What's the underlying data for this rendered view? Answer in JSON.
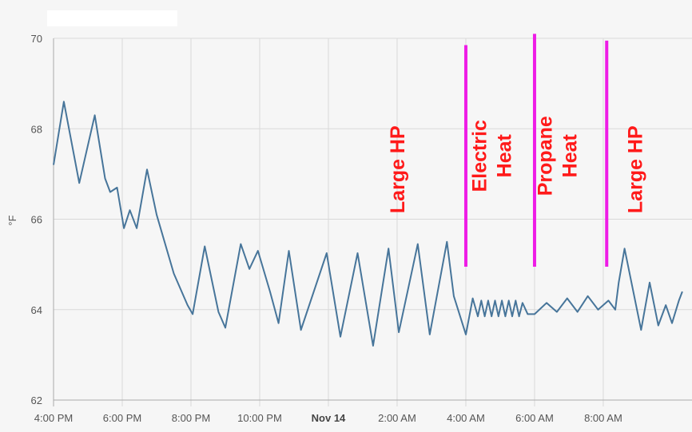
{
  "chart_data": {
    "type": "line",
    "title": "",
    "xlabel": "",
    "ylabel": "°F",
    "ylim": [
      62,
      70
    ],
    "y_ticks": [
      62,
      64,
      66,
      68,
      70
    ],
    "x_domain_hours": [
      16,
      34.35
    ],
    "x_ticks": [
      {
        "hour": 16,
        "label": "4:00 PM",
        "bold": false
      },
      {
        "hour": 18,
        "label": "6:00 PM",
        "bold": false
      },
      {
        "hour": 20,
        "label": "8:00 PM",
        "bold": false
      },
      {
        "hour": 22,
        "label": "10:00 PM",
        "bold": false
      },
      {
        "hour": 24,
        "label": "Nov 14",
        "bold": true
      },
      {
        "hour": 26,
        "label": "2:00 AM",
        "bold": false
      },
      {
        "hour": 28,
        "label": "4:00 AM",
        "bold": false
      },
      {
        "hour": 30,
        "label": "6:00 AM",
        "bold": false
      },
      {
        "hour": 32,
        "label": "8:00 AM",
        "bold": false
      }
    ],
    "grid": true,
    "line_color": "#47759a",
    "series": [
      {
        "name": "",
        "points": [
          [
            16.0,
            67.2
          ],
          [
            16.3,
            68.6
          ],
          [
            16.75,
            66.8
          ],
          [
            17.2,
            68.3
          ],
          [
            17.5,
            66.9
          ],
          [
            17.65,
            66.6
          ],
          [
            17.85,
            66.7
          ],
          [
            18.05,
            65.8
          ],
          [
            18.22,
            66.2
          ],
          [
            18.42,
            65.8
          ],
          [
            18.72,
            67.1
          ],
          [
            19.0,
            66.1
          ],
          [
            19.5,
            64.8
          ],
          [
            19.9,
            64.1
          ],
          [
            20.05,
            63.9
          ],
          [
            20.4,
            65.4
          ],
          [
            20.8,
            63.95
          ],
          [
            21.0,
            63.6
          ],
          [
            21.45,
            65.45
          ],
          [
            21.7,
            64.9
          ],
          [
            21.95,
            65.3
          ],
          [
            22.3,
            64.4
          ],
          [
            22.55,
            63.7
          ],
          [
            22.85,
            65.3
          ],
          [
            23.2,
            63.55
          ],
          [
            23.95,
            65.25
          ],
          [
            24.35,
            63.4
          ],
          [
            24.85,
            65.25
          ],
          [
            25.3,
            63.2
          ],
          [
            25.75,
            65.35
          ],
          [
            26.05,
            63.5
          ],
          [
            26.6,
            65.45
          ],
          [
            26.95,
            63.45
          ],
          [
            27.45,
            65.5
          ],
          [
            27.65,
            64.3
          ],
          [
            28.0,
            63.45
          ],
          [
            28.2,
            64.25
          ],
          [
            28.35,
            63.85
          ],
          [
            28.45,
            64.2
          ],
          [
            28.55,
            63.85
          ],
          [
            28.65,
            64.2
          ],
          [
            28.75,
            63.85
          ],
          [
            28.85,
            64.2
          ],
          [
            28.95,
            63.85
          ],
          [
            29.05,
            64.2
          ],
          [
            29.15,
            63.85
          ],
          [
            29.25,
            64.2
          ],
          [
            29.35,
            63.85
          ],
          [
            29.45,
            64.2
          ],
          [
            29.55,
            63.85
          ],
          [
            29.65,
            64.15
          ],
          [
            29.8,
            63.9
          ],
          [
            30.0,
            63.9
          ],
          [
            30.35,
            64.15
          ],
          [
            30.65,
            63.95
          ],
          [
            30.95,
            64.25
          ],
          [
            31.25,
            63.95
          ],
          [
            31.55,
            64.3
          ],
          [
            31.85,
            64.0
          ],
          [
            32.15,
            64.2
          ],
          [
            32.35,
            64.0
          ],
          [
            32.45,
            64.6
          ],
          [
            32.62,
            65.35
          ],
          [
            32.9,
            64.3
          ],
          [
            33.1,
            63.55
          ],
          [
            33.35,
            64.6
          ],
          [
            33.6,
            63.65
          ],
          [
            33.82,
            64.1
          ],
          [
            34.0,
            63.7
          ],
          [
            34.2,
            64.2
          ],
          [
            34.3,
            64.4
          ]
        ]
      }
    ],
    "annotations": [
      {
        "text": "Large HP",
        "lines": [
          "Large HP"
        ],
        "hour": 26.0,
        "y": 67.1
      },
      {
        "text": "Electric Heat",
        "lines": [
          "Electric",
          "Heat"
        ],
        "hour": 28.75,
        "y": 67.4
      },
      {
        "text": "Propane Heat",
        "lines": [
          "Propane",
          "Heat"
        ],
        "hour": 30.65,
        "y": 67.4
      },
      {
        "text": "Large HP",
        "lines": [
          "Large HP"
        ],
        "hour": 32.92,
        "y": 67.1
      }
    ],
    "markers": [
      {
        "hour": 28.0,
        "y_from": 64.95,
        "y_to": 69.85
      },
      {
        "hour": 30.0,
        "y_from": 64.95,
        "y_to": 70.1
      },
      {
        "hour": 32.1,
        "y_from": 64.95,
        "y_to": 69.95
      }
    ],
    "marker_color": "#ee1ce6",
    "annotation_color": "#ff1a1a"
  }
}
